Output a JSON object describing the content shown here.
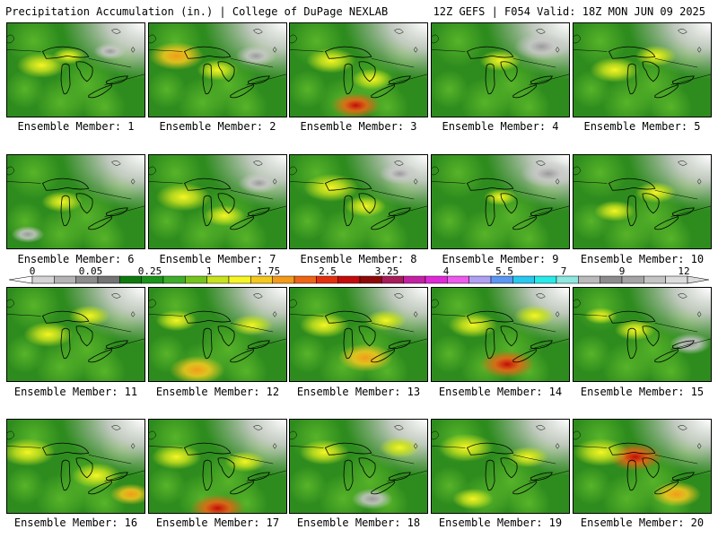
{
  "header": {
    "title_left": "Precipitation Accumulation (in.) | College of DuPage NEXLAB",
    "title_right": "12Z GEFS | F054 Valid: 18Z MON JUN 09 2025"
  },
  "colorbar": {
    "tick_labels": [
      "0",
      "0.05",
      "0.25",
      "1",
      "1.75",
      "2.5",
      "3.25",
      "4",
      "5.5",
      "7",
      "9",
      "12"
    ],
    "colors": [
      "#d4d4d4",
      "#b4b4b4",
      "#8c8c8c",
      "#737373",
      "#0e7a0e",
      "#1a941a",
      "#3cae2a",
      "#74c41c",
      "#c8e21e",
      "#f6f624",
      "#f6c81e",
      "#f49a1a",
      "#ee6414",
      "#e42f0e",
      "#c40a0a",
      "#8e0808",
      "#a81c5a",
      "#c420a4",
      "#e028d8",
      "#ee5aee",
      "#b0a0f4",
      "#5a96f4",
      "#28c8f0",
      "#28eaea",
      "#8ce8e0",
      "#bababa",
      "#8c8c8c",
      "#a4a4a4",
      "#c4c4c4",
      "#dcdcdc"
    ]
  },
  "panels": [
    {
      "label": "Ensemble Member: 1",
      "hotspots": [
        [
          0.25,
          0.45,
          0.18,
          "yellow"
        ],
        [
          0.45,
          0.35,
          0.12,
          "yellow"
        ],
        [
          0.75,
          0.3,
          0.12,
          "gray"
        ]
      ]
    },
    {
      "label": "Ensemble Member: 2",
      "hotspots": [
        [
          0.2,
          0.35,
          0.2,
          "orange"
        ],
        [
          0.5,
          0.5,
          0.15,
          "yellow"
        ],
        [
          0.78,
          0.35,
          0.15,
          "gray"
        ]
      ]
    },
    {
      "label": "Ensemble Member: 3",
      "hotspots": [
        [
          0.48,
          0.88,
          0.18,
          "red"
        ],
        [
          0.3,
          0.4,
          0.18,
          "yellow"
        ],
        [
          0.6,
          0.6,
          0.15,
          "yellow"
        ]
      ]
    },
    {
      "label": "Ensemble Member: 4",
      "hotspots": [
        [
          0.5,
          0.4,
          0.15,
          "yellow"
        ],
        [
          0.8,
          0.25,
          0.2,
          "gray"
        ]
      ]
    },
    {
      "label": "Ensemble Member: 5",
      "hotspots": [
        [
          0.3,
          0.5,
          0.18,
          "yellow"
        ],
        [
          0.6,
          0.35,
          0.15,
          "yellow"
        ]
      ]
    },
    {
      "label": "Ensemble Member: 6",
      "hotspots": [
        [
          0.4,
          0.5,
          0.15,
          "yellow"
        ],
        [
          0.15,
          0.85,
          0.12,
          "gray"
        ]
      ]
    },
    {
      "label": "Ensemble Member: 7",
      "hotspots": [
        [
          0.25,
          0.45,
          0.2,
          "yellow"
        ],
        [
          0.55,
          0.65,
          0.15,
          "yellow"
        ],
        [
          0.8,
          0.3,
          0.15,
          "gray"
        ]
      ]
    },
    {
      "label": "Ensemble Member: 8",
      "hotspots": [
        [
          0.3,
          0.35,
          0.2,
          "yellow"
        ],
        [
          0.55,
          0.55,
          0.15,
          "yellow"
        ],
        [
          0.8,
          0.2,
          0.15,
          "gray"
        ]
      ]
    },
    {
      "label": "Ensemble Member: 9",
      "hotspots": [
        [
          0.5,
          0.45,
          0.12,
          "yellow"
        ],
        [
          0.85,
          0.2,
          0.2,
          "gray"
        ]
      ]
    },
    {
      "label": "Ensemble Member: 10",
      "hotspots": [
        [
          0.6,
          0.4,
          0.15,
          "yellow"
        ],
        [
          0.3,
          0.6,
          0.15,
          "yellow"
        ]
      ]
    },
    {
      "label": "Ensemble Member: 11",
      "hotspots": [
        [
          0.3,
          0.5,
          0.18,
          "yellow"
        ],
        [
          0.6,
          0.3,
          0.15,
          "yellow"
        ]
      ]
    },
    {
      "label": "Ensemble Member: 12",
      "hotspots": [
        [
          0.35,
          0.88,
          0.2,
          "orange"
        ],
        [
          0.2,
          0.35,
          0.15,
          "yellow"
        ],
        [
          0.75,
          0.4,
          0.15,
          "yellow"
        ]
      ]
    },
    {
      "label": "Ensemble Member: 13",
      "hotspots": [
        [
          0.25,
          0.4,
          0.18,
          "yellow"
        ],
        [
          0.55,
          0.75,
          0.2,
          "orange"
        ],
        [
          0.7,
          0.35,
          0.15,
          "yellow"
        ]
      ]
    },
    {
      "label": "Ensemble Member: 14",
      "hotspots": [
        [
          0.55,
          0.82,
          0.2,
          "red"
        ],
        [
          0.3,
          0.4,
          0.18,
          "yellow"
        ],
        [
          0.75,
          0.3,
          0.15,
          "yellow"
        ]
      ]
    },
    {
      "label": "Ensemble Member: 15",
      "hotspots": [
        [
          0.45,
          0.45,
          0.15,
          "yellow"
        ],
        [
          0.2,
          0.3,
          0.12,
          "yellow"
        ],
        [
          0.85,
          0.6,
          0.15,
          "gray"
        ]
      ]
    },
    {
      "label": "Ensemble Member: 16",
      "hotspots": [
        [
          0.15,
          0.35,
          0.2,
          "yellow"
        ],
        [
          0.65,
          0.6,
          0.18,
          "yellow"
        ],
        [
          0.9,
          0.8,
          0.15,
          "orange"
        ]
      ]
    },
    {
      "label": "Ensemble Member: 17",
      "hotspots": [
        [
          0.5,
          0.95,
          0.2,
          "red"
        ],
        [
          0.2,
          0.4,
          0.18,
          "yellow"
        ],
        [
          0.7,
          0.45,
          0.15,
          "yellow"
        ]
      ]
    },
    {
      "label": "Ensemble Member: 18",
      "hotspots": [
        [
          0.25,
          0.35,
          0.18,
          "yellow"
        ],
        [
          0.8,
          0.3,
          0.15,
          "yellow"
        ],
        [
          0.6,
          0.85,
          0.15,
          "gray"
        ]
      ]
    },
    {
      "label": "Ensemble Member: 19",
      "hotspots": [
        [
          0.25,
          0.3,
          0.2,
          "yellow"
        ],
        [
          0.7,
          0.4,
          0.15,
          "yellow"
        ],
        [
          0.3,
          0.85,
          0.15,
          "yellow"
        ]
      ]
    },
    {
      "label": "Ensemble Member: 20",
      "hotspots": [
        [
          0.45,
          0.4,
          0.2,
          "red"
        ],
        [
          0.2,
          0.35,
          0.2,
          "yellow"
        ],
        [
          0.75,
          0.8,
          0.18,
          "orange"
        ]
      ]
    }
  ]
}
